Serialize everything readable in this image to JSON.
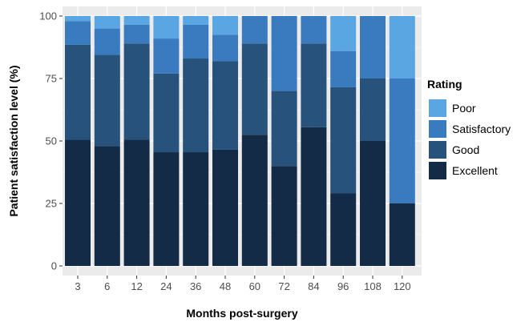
{
  "chart_data": {
    "type": "bar",
    "stacked": true,
    "title": "",
    "xlabel": "Months post-surgery",
    "ylabel": "Patient satisfaction level (%)",
    "ylim": [
      0,
      100
    ],
    "yticks": [
      "0",
      "25",
      "50",
      "75",
      "100"
    ],
    "categories": [
      "3",
      "6",
      "12",
      "24",
      "36",
      "48",
      "60",
      "72",
      "84",
      "96",
      "108",
      "120"
    ],
    "legend_title": "Rating",
    "legend_position": "right",
    "grid": true,
    "series": [
      {
        "name": "Excellent",
        "color": "#132b47",
        "values": [
          50.5,
          48,
          50.5,
          45.5,
          45.5,
          46.5,
          52.5,
          40,
          55.5,
          29,
          50,
          25
        ]
      },
      {
        "name": "Good",
        "color": "#26527c",
        "values": [
          38,
          36.5,
          38.5,
          31.5,
          37.5,
          35.5,
          36.5,
          30,
          33.5,
          42.5,
          25,
          0
        ]
      },
      {
        "name": "Satisfactory",
        "color": "#3a7bbf",
        "values": [
          9.5,
          10.5,
          7.5,
          14,
          13.5,
          10.5,
          11,
          30,
          11,
          14.5,
          25,
          50
        ]
      },
      {
        "name": "Poor",
        "color": "#59a6e3",
        "values": [
          2,
          5,
          3.5,
          9,
          3.5,
          7.5,
          0,
          0,
          0,
          14,
          0,
          25
        ]
      }
    ]
  }
}
